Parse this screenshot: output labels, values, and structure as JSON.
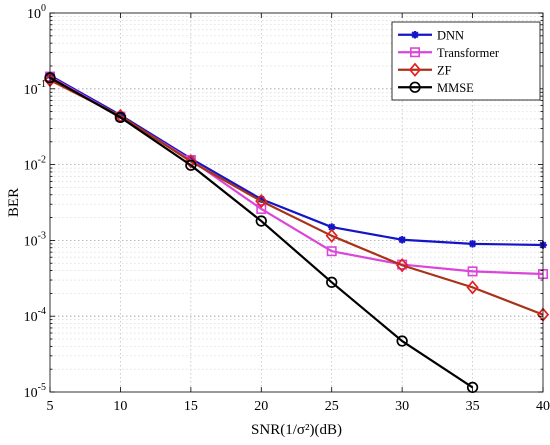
{
  "chart_data": {
    "type": "line",
    "title": "",
    "xlabel": "SNR(1/σ²)(dB)",
    "ylabel": "BER",
    "yscale": "log",
    "xlim": [
      5,
      40
    ],
    "ylim": [
      1e-05,
      1
    ],
    "x_ticks": [
      5,
      10,
      15,
      20,
      25,
      30,
      35,
      40
    ],
    "x_tick_labels": [
      "5",
      "10",
      "15",
      "20",
      "25",
      "30",
      "35",
      "40"
    ],
    "y_ticks": [
      1e-05,
      0.0001,
      0.001,
      0.01,
      0.1,
      1
    ],
    "y_tick_labels": [
      {
        "base": "10",
        "exp": "-5"
      },
      {
        "base": "10",
        "exp": "-4"
      },
      {
        "base": "10",
        "exp": "-3"
      },
      {
        "base": "10",
        "exp": "-2"
      },
      {
        "base": "10",
        "exp": "-1"
      },
      {
        "base": "10",
        "exp": "0"
      }
    ],
    "grid": true,
    "legend_position": "top-right",
    "series": [
      {
        "name": "DNN",
        "color": "#1515c8",
        "marker": "asterisk",
        "x": [
          5,
          10,
          15,
          20,
          25,
          30,
          35,
          40
        ],
        "values": [
          0.15,
          0.045,
          0.012,
          0.0035,
          0.0015,
          0.00102,
          0.0009,
          0.00087
        ]
      },
      {
        "name": "Transformer",
        "color": "#d946d9",
        "marker": "square",
        "x": [
          5,
          10,
          15,
          20,
          25,
          30,
          35,
          40
        ],
        "values": [
          0.145,
          0.043,
          0.0115,
          0.0026,
          0.00072,
          0.00048,
          0.00039,
          0.00036
        ]
      },
      {
        "name": "ZF",
        "color": "#e02020",
        "line_color": "#a83218",
        "marker": "diamond",
        "x": [
          5,
          10,
          15,
          20,
          25,
          30,
          35,
          40
        ],
        "values": [
          0.13,
          0.044,
          0.011,
          0.0033,
          0.00115,
          0.00047,
          0.00024,
          0.000105
        ]
      },
      {
        "name": "MMSE",
        "color": "#000000",
        "marker": "circle",
        "x": [
          5,
          10,
          15,
          20,
          25,
          30,
          35
        ],
        "values": [
          0.14,
          0.042,
          0.0098,
          0.0018,
          0.00028,
          4.7e-05,
          1.15e-05
        ]
      }
    ]
  }
}
